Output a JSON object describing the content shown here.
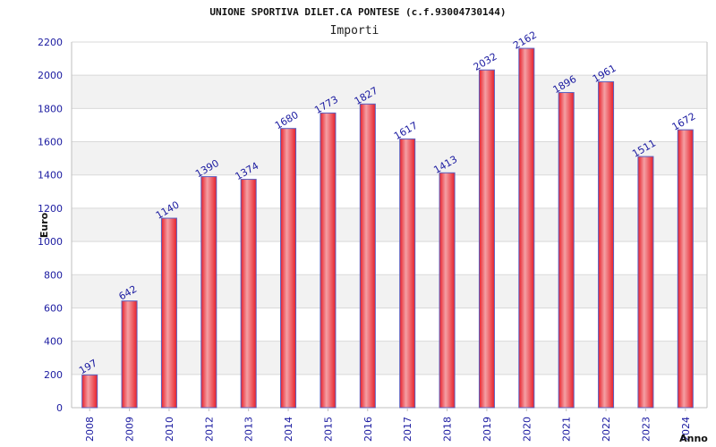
{
  "chart_data": {
    "type": "bar",
    "title": "UNIONE SPORTIVA DILET.CA PONTESE (c.f.93004730144)",
    "subtitle": "Importi",
    "ylabel": "Euro",
    "xlabel": "Anno",
    "categories": [
      "2008",
      "2009",
      "2010",
      "2012",
      "2013",
      "2014",
      "2015",
      "2016",
      "2017",
      "2018",
      "2019",
      "2020",
      "2021",
      "2022",
      "2023",
      "2024"
    ],
    "values": [
      197,
      642,
      1140,
      1390,
      1374,
      1680,
      1773,
      1827,
      1617,
      1413,
      2032,
      2162,
      1896,
      1961,
      1511,
      1672
    ],
    "yticks": [
      0,
      200,
      400,
      600,
      800,
      1000,
      1200,
      1400,
      1600,
      1800,
      2000,
      2200
    ],
    "ylim": [
      0,
      2200
    ],
    "grid": true,
    "legend": "none"
  },
  "colors": {
    "bar_main": "#e8202a",
    "bar_highlight": "#f4a0a4",
    "bar_border": "#5a5fbf",
    "tick_text": "#1a1aa0",
    "band": "#f2f2f2",
    "grid": "#d9d9d9",
    "axis": "#bfbfbf"
  }
}
